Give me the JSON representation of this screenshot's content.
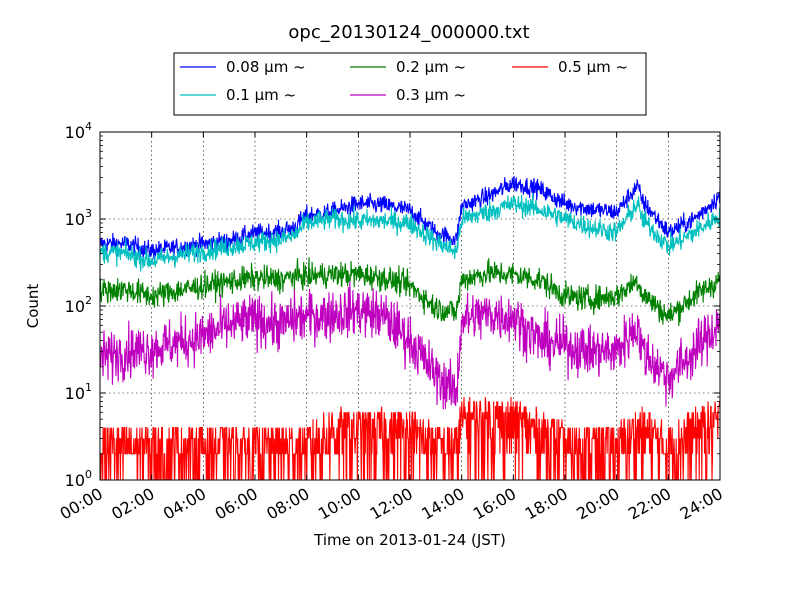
{
  "chart_data": {
    "type": "line",
    "title": "opc_20130124_000000.txt",
    "xlabel": "Time on 2013-01-24 (JST)",
    "ylabel": "Count",
    "yscale": "log",
    "ylim": [
      1,
      10000
    ],
    "xlim": [
      "00:00",
      "24:00"
    ],
    "x_ticks": [
      "00:00",
      "02:00",
      "04:00",
      "06:00",
      "08:00",
      "10:00",
      "12:00",
      "14:00",
      "16:00",
      "18:00",
      "20:00",
      "22:00",
      "24:00"
    ],
    "y_ticks": [
      {
        "value": 1,
        "base": "10",
        "exp": "0"
      },
      {
        "value": 10,
        "base": "10",
        "exp": "1"
      },
      {
        "value": 100,
        "base": "10",
        "exp": "2"
      },
      {
        "value": 1000,
        "base": "10",
        "exp": "3"
      },
      {
        "value": 10000,
        "base": "10",
        "exp": "4"
      }
    ],
    "grid": true,
    "legend_position": "top, above plot",
    "x_hours": [
      0,
      1,
      2,
      3,
      4,
      5,
      6,
      7,
      7.5,
      8,
      9,
      10,
      11,
      12,
      13,
      13.8,
      14,
      15,
      16,
      17,
      18,
      19,
      20,
      20.8,
      21,
      22,
      23,
      24
    ],
    "series": [
      {
        "name": "0.08 μm ~",
        "color": "#0000ff",
        "noise": 0.22,
        "values": [
          520,
          520,
          430,
          470,
          520,
          560,
          680,
          720,
          800,
          1100,
          1200,
          1500,
          1450,
          1250,
          700,
          580,
          1400,
          1800,
          2600,
          2200,
          1500,
          1300,
          1200,
          2400,
          1600,
          700,
          1000,
          1850
        ]
      },
      {
        "name": "0.1 μm ~",
        "color": "#00bfbf",
        "noise": 0.25,
        "values": [
          420,
          400,
          330,
          380,
          430,
          480,
          540,
          580,
          640,
          900,
          1000,
          950,
          950,
          900,
          550,
          420,
          1000,
          1200,
          1500,
          1300,
          1000,
          800,
          700,
          1500,
          1000,
          480,
          700,
          1100
        ]
      },
      {
        "name": "0.2 μm ~",
        "color": "#008000",
        "noise": 0.3,
        "values": [
          150,
          155,
          130,
          150,
          170,
          190,
          210,
          200,
          220,
          220,
          230,
          230,
          210,
          170,
          95,
          85,
          200,
          240,
          230,
          200,
          130,
          120,
          130,
          200,
          140,
          75,
          130,
          200
        ]
      },
      {
        "name": "0.3 μm ~",
        "color": "#bf00bf",
        "noise": 0.6,
        "values": [
          25,
          30,
          32,
          38,
          45,
          60,
          70,
          60,
          70,
          75,
          80,
          90,
          75,
          40,
          16,
          10,
          70,
          80,
          75,
          40,
          35,
          30,
          30,
          60,
          30,
          15,
          30,
          65
        ]
      },
      {
        "name": "0.5 μm ~",
        "color": "#ff0000",
        "noise": 0,
        "values": [
          2,
          2,
          2,
          2,
          2,
          2,
          2,
          2,
          2,
          2,
          3,
          3,
          3,
          3,
          2,
          2,
          4,
          4,
          4,
          3,
          2,
          2,
          2,
          3,
          3,
          2,
          3,
          4
        ]
      }
    ]
  },
  "legend_layout": {
    "rows": 2,
    "cols": 3
  }
}
